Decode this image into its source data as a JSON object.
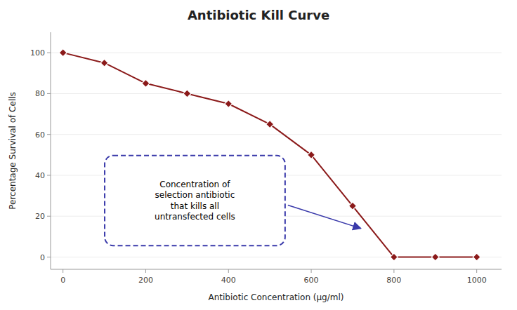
{
  "chart_data": {
    "type": "line",
    "title": "Antibiotic Kill Curve",
    "xlabel": "Antibiotic Concentration (μg/ml)",
    "ylabel": "Percentage Survival of Cells",
    "x": [
      0,
      100,
      200,
      300,
      400,
      500,
      600,
      700,
      800,
      900,
      1000
    ],
    "values": [
      100,
      95,
      85,
      80,
      75,
      65,
      50,
      25,
      0,
      0,
      0
    ],
    "color": "#8B1A1A",
    "marker": "diamond",
    "xlim": [
      -30,
      1060
    ],
    "ylim": [
      -6,
      110
    ],
    "xticks": [
      0,
      200,
      400,
      600,
      800,
      1000
    ],
    "yticks": [
      0,
      20,
      40,
      60,
      80,
      100
    ],
    "annotations": [
      {
        "text": "Concentration of\nselection antibiotic\nthat kills all\nuntransfected cells",
        "x": 720,
        "y": 14
      }
    ]
  }
}
